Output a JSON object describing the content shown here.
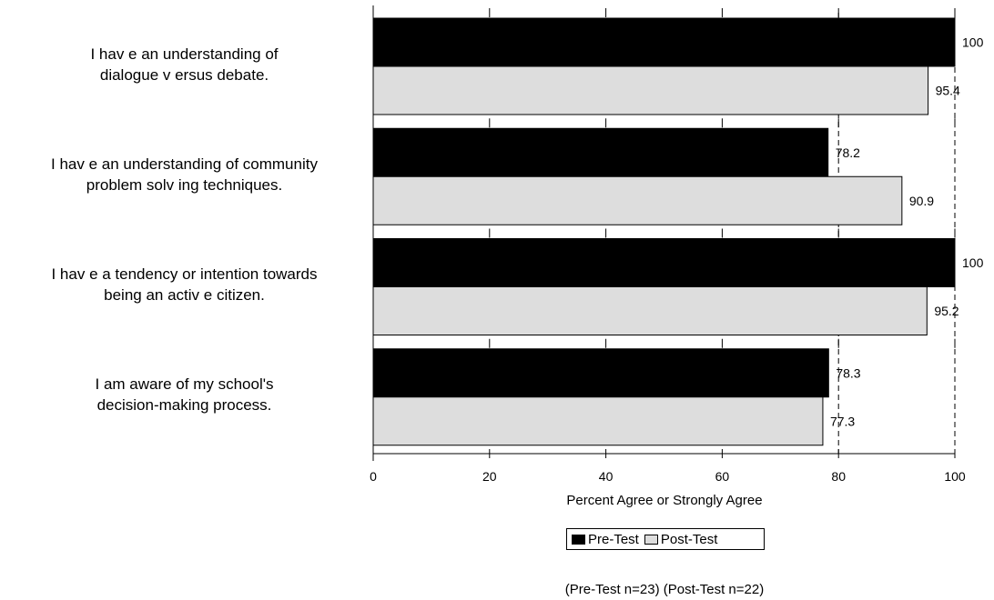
{
  "chart_data": {
    "type": "bar",
    "orientation": "horizontal",
    "categories": [
      [
        "I hav e an understanding of",
        "dialogue v ersus debate."
      ],
      [
        "I hav e an understanding of community",
        "problem solv ing techniques."
      ],
      [
        "I hav e a tendency or intention towards",
        "being an activ e citizen."
      ],
      [
        "I am aware of my school's",
        "decision-making process."
      ]
    ],
    "series": [
      {
        "name": "Pre-Test",
        "color": "#000000",
        "values": [
          100,
          78.2,
          100,
          78.3
        ],
        "labels": [
          "100",
          "78.2",
          "100",
          "78.3"
        ]
      },
      {
        "name": "Post-Test",
        "color": "#dddddd",
        "values": [
          95.4,
          90.9,
          95.2,
          77.3
        ],
        "labels": [
          "95.4",
          "90.9",
          "95.2",
          "77.3"
        ]
      }
    ],
    "xlim": [
      0,
      100
    ],
    "xticks": [
      "0",
      "20",
      "40",
      "60",
      "80",
      "100"
    ],
    "xlabel": "Percent Agree or Strongly Agree",
    "reference_lines": [
      80,
      100
    ],
    "legend": "bottom",
    "note": "(Pre-Test n=23)  (Post-Test n=22)"
  }
}
